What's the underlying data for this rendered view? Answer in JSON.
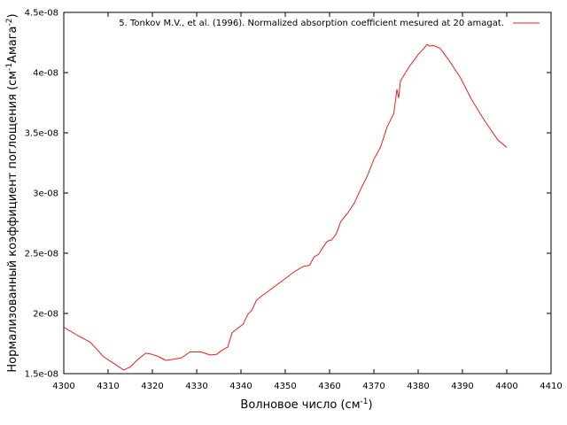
{
  "chart_data": {
    "type": "line",
    "xlabel": "Волновое число (см",
    "xlabel_sup": "-1",
    "xlabel_end": ")",
    "ylabel": "Нормализованный коэффициент поглощения (см",
    "ylabel_sup1": "-1",
    "ylabel_mid": "Амага",
    "ylabel_sup2": "-2",
    "ylabel_end": ")",
    "xlim": [
      4300,
      4410
    ],
    "ylim": [
      1.5e-08,
      4.5e-08
    ],
    "xticks": [
      "4300",
      "4310",
      "4320",
      "4330",
      "4340",
      "4350",
      "4360",
      "4370",
      "4380",
      "4390",
      "4400",
      "4410"
    ],
    "yticks": [
      "1.5e-08",
      "2e-08",
      "2.5e-08",
      "3e-08",
      "3.5e-08",
      "4e-08",
      "4.5e-08"
    ],
    "grid": false,
    "legend_position": "top-right",
    "series": [
      {
        "name": "5. Tonkov M.V., et al. (1996). Normalized absorption coefficient mesured at 20 amagat.",
        "color": "#e8211a",
        "x": [
          4300,
          4303,
          4306,
          4309,
          4311.5,
          4313.5,
          4315,
          4316.5,
          4318.5,
          4320,
          4321.5,
          4323,
          4324,
          4326.5,
          4328.5,
          4331,
          4333,
          4334.5,
          4335.5,
          4337,
          4338,
          4339,
          4340.5,
          4341.5,
          4342.5,
          4343.5,
          4344.5,
          4346,
          4348,
          4350,
          4352,
          4354,
          4355.5,
          4356.5,
          4357.5,
          4358.5,
          4359.5,
          4360.5,
          4361.5,
          4362.5,
          4364,
          4365.5,
          4367,
          4368.5,
          4370,
          4371.5,
          4373,
          4374.5,
          4375.2,
          4375.6,
          4376,
          4376.5,
          4378,
          4380,
          4381.5,
          4382,
          4382.5,
          4383.5,
          4385,
          4387,
          4389.5,
          4392,
          4395,
          4398,
          4400
        ],
        "y": [
          1.885e-08,
          1.82e-08,
          1.76e-08,
          1.64e-08,
          1.58e-08,
          1.53e-08,
          1.555e-08,
          1.61e-08,
          1.67e-08,
          1.66e-08,
          1.64e-08,
          1.61e-08,
          1.615e-08,
          1.63e-08,
          1.68e-08,
          1.68e-08,
          1.655e-08,
          1.66e-08,
          1.69e-08,
          1.72e-08,
          1.84e-08,
          1.87e-08,
          1.91e-08,
          1.99e-08,
          2.03e-08,
          2.11e-08,
          2.14e-08,
          2.18e-08,
          2.235e-08,
          2.29e-08,
          2.345e-08,
          2.39e-08,
          2.4e-08,
          2.47e-08,
          2.49e-08,
          2.55e-08,
          2.6e-08,
          2.61e-08,
          2.66e-08,
          2.76e-08,
          2.83e-08,
          2.91e-08,
          3.03e-08,
          3.14e-08,
          3.28e-08,
          3.38e-08,
          3.55e-08,
          3.66e-08,
          3.86e-08,
          3.79e-08,
          3.93e-08,
          3.96e-08,
          4.05e-08,
          4.15e-08,
          4.21e-08,
          4.235e-08,
          4.22e-08,
          4.225e-08,
          4.2e-08,
          4.1e-08,
          3.96e-08,
          3.78e-08,
          3.6e-08,
          3.44e-08,
          3.38e-08
        ]
      }
    ]
  }
}
